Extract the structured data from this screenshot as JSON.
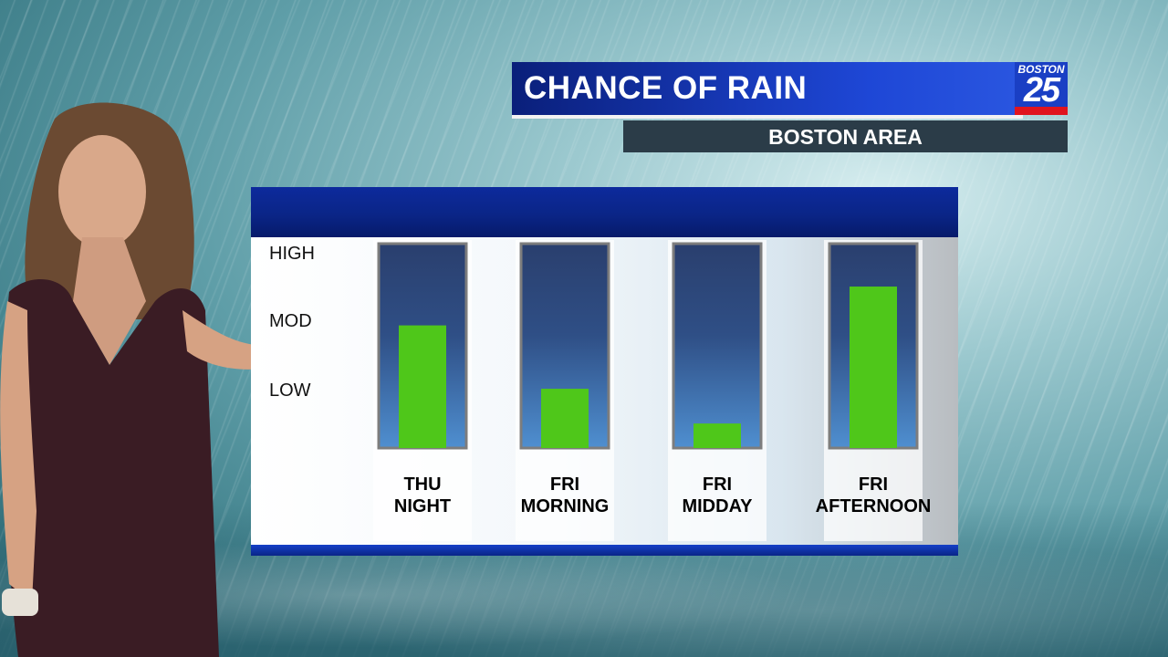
{
  "graphic": {
    "title": "CHANCE OF RAIN",
    "subtitle": "BOSTON AREA",
    "logo_top": "BOSTON",
    "logo_number": "25"
  },
  "colors": {
    "title_bar": "#1739b8",
    "subtitle_bar": "#2b3c48",
    "bar_fill": "#4fc71a",
    "column_bg": "#2c4f86",
    "logo_red": "#e0141e"
  },
  "chart_data": {
    "type": "bar",
    "title": "",
    "y_tick_labels": [
      "HIGH",
      "MOD",
      "LOW"
    ],
    "categories": [
      [
        "THU",
        "NIGHT"
      ],
      [
        "FRI",
        "MORNING"
      ],
      [
        "FRI",
        "MIDDAY"
      ],
      [
        "FRI",
        "AFTERNOON"
      ]
    ],
    "values": [
      0.6,
      0.29,
      0.12,
      0.79
    ],
    "ylim": [
      0,
      1
    ],
    "grid": false,
    "legend": "none"
  }
}
